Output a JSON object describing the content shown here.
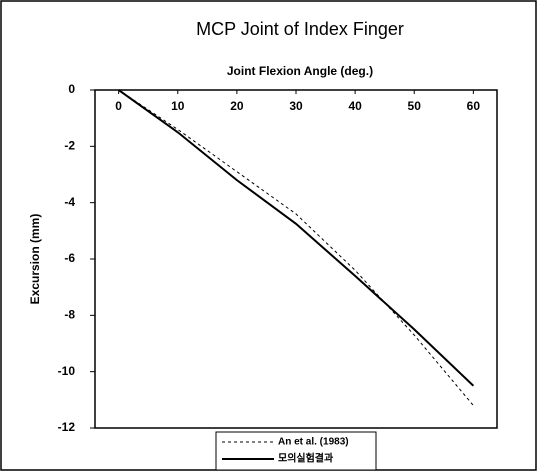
{
  "chart_data": {
    "type": "line",
    "title": "MCP Joint of Index Finger",
    "x_label": "Joint Flexion Angle (deg.)",
    "y_label": "Excursion (mm)",
    "x": [
      0,
      10,
      20,
      30,
      40,
      50,
      60
    ],
    "series": [
      {
        "name": "An et al. (1983)",
        "color": "#000000",
        "style": "dashed",
        "values": [
          0,
          -1.4,
          -2.9,
          -4.4,
          -6.4,
          -8.7,
          -11.2
        ]
      },
      {
        "name": "모의실험결과",
        "color": "#000000",
        "style": "solid",
        "values": [
          0,
          -1.5,
          -3.2,
          -4.75,
          -6.6,
          -8.5,
          -10.5
        ]
      }
    ],
    "xlim": [
      -4,
      64
    ],
    "xticks": [
      0,
      10,
      20,
      30,
      40,
      50,
      60
    ],
    "ylim": [
      -12,
      0
    ],
    "yticks": [
      0,
      -2,
      -4,
      -6,
      -8,
      -10,
      -12
    ],
    "grid": false,
    "legend": "bottom"
  }
}
